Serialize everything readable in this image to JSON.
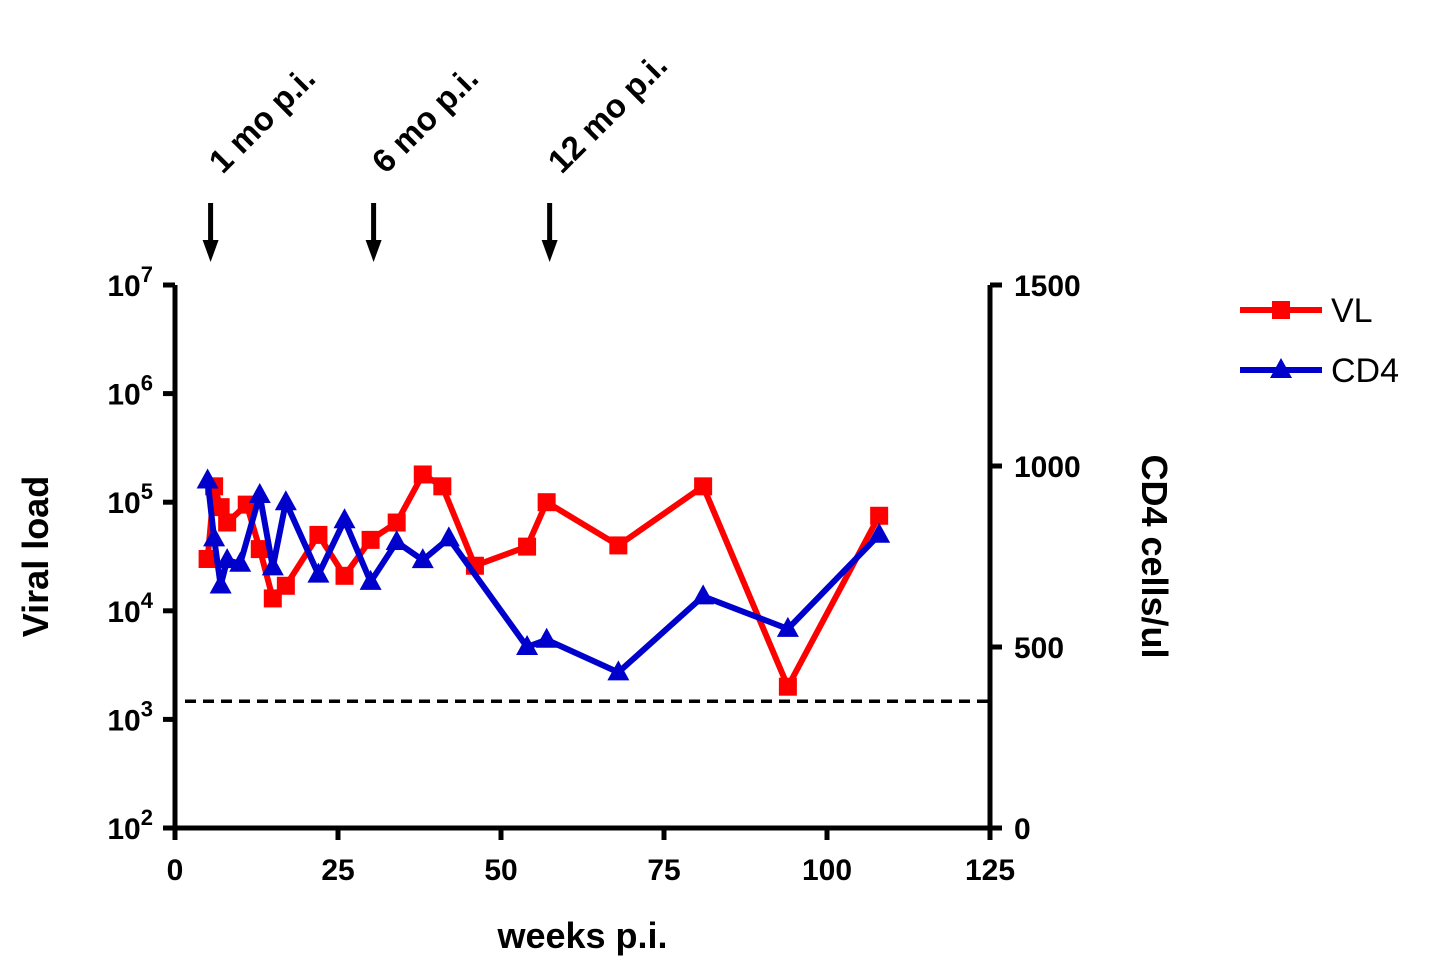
{
  "chart_data": {
    "type": "line",
    "xlabel": "weeks p.i.",
    "ylabel_left": "Viral load",
    "ylabel_right": "CD4 cells/ul",
    "x_ticks": [
      "0",
      "25",
      "50",
      "75",
      "100",
      "125"
    ],
    "x_tick_values": [
      0,
      25,
      50,
      75,
      100,
      125
    ],
    "xlim": [
      0,
      125
    ],
    "y_left_scale": "log",
    "y_left_ticks": [
      {
        "base": "10",
        "exp": "2",
        "value": 100
      },
      {
        "base": "10",
        "exp": "3",
        "value": 1000
      },
      {
        "base": "10",
        "exp": "4",
        "value": 10000
      },
      {
        "base": "10",
        "exp": "5",
        "value": 100000
      },
      {
        "base": "10",
        "exp": "6",
        "value": 1000000
      },
      {
        "base": "10",
        "exp": "7",
        "value": 10000000
      }
    ],
    "y_left_lim": [
      100,
      10000000
    ],
    "y_right_ticks": [
      "0",
      "500",
      "1000",
      "1500"
    ],
    "y_right_tick_values": [
      0,
      500,
      1000,
      1500
    ],
    "y_right_lim": [
      0,
      1500
    ],
    "threshold_line": {
      "axis": "right",
      "value": 350,
      "style": "dashed"
    },
    "annotations": [
      {
        "text": "1 mo p.i.",
        "x": 5
      },
      {
        "text": "6 mo p.i.",
        "x": 30
      },
      {
        "text": "12 mo p.i.",
        "x": 57
      }
    ],
    "legend_position": "right",
    "series": [
      {
        "name": "VL",
        "axis": "left",
        "color": "#ff0000",
        "marker": "square",
        "x": [
          5,
          6,
          7,
          8,
          11,
          13,
          15,
          17,
          22,
          26,
          30,
          34,
          38,
          41,
          46,
          54,
          57,
          68,
          81,
          94,
          108
        ],
        "y": [
          30000,
          140000,
          90000,
          65000,
          95000,
          37000,
          13000,
          17000,
          50000,
          21000,
          45000,
          65000,
          180000,
          140000,
          26000,
          39000,
          100000,
          40000,
          140000,
          2000,
          75000
        ]
      },
      {
        "name": "CD4",
        "axis": "right",
        "color": "#0000cc",
        "marker": "triangle",
        "x": [
          5,
          6,
          7,
          8,
          10,
          13,
          15,
          17,
          22,
          26,
          30,
          34,
          38,
          42,
          54,
          57,
          68,
          81,
          94,
          108
        ],
        "y": [
          960,
          800,
          670,
          740,
          730,
          920,
          720,
          900,
          700,
          850,
          680,
          790,
          740,
          800,
          500,
          520,
          430,
          640,
          550,
          810
        ]
      }
    ]
  }
}
